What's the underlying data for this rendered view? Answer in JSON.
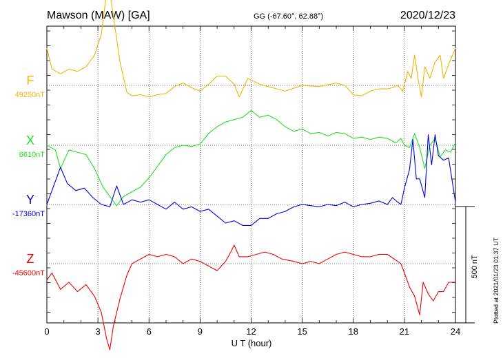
{
  "header": {
    "station": "Mawson (MAW)  [GA]",
    "coords": "GG (-67.60°,  62.88°)",
    "date": "2020/12/23"
  },
  "plotted": "Plotted at 2021/01/23 01:37 UT",
  "chart_data": {
    "type": "line",
    "xlabel": "U T (hour)",
    "xlim": [
      0,
      24
    ],
    "xticks": [
      0,
      3,
      6,
      9,
      12,
      15,
      18,
      21,
      24
    ],
    "xtick_labels": [
      "0",
      "3",
      "6",
      "9",
      "12",
      "15",
      "18",
      "21",
      "24"
    ],
    "grid": true,
    "scale_bar": {
      "label": "500 nT",
      "value_nT": 500
    },
    "series": [
      {
        "name": "F",
        "baseline_label": "49250nT",
        "baseline_nT": 49250,
        "color": "#f5b400",
        "points": [
          [
            0,
            49410
          ],
          [
            0.3,
            49320
          ],
          [
            0.8,
            49300
          ],
          [
            1.3,
            49320
          ],
          [
            1.8,
            49310
          ],
          [
            2.3,
            49330
          ],
          [
            2.8,
            49380
          ],
          [
            3.2,
            49470
          ],
          [
            3.6,
            49700
          ],
          [
            3.9,
            49550
          ],
          [
            4.3,
            49350
          ],
          [
            4.7,
            49220
          ],
          [
            5,
            49205
          ],
          [
            5.5,
            49210
          ],
          [
            6,
            49200
          ],
          [
            6.5,
            49210
          ],
          [
            7,
            49215
          ],
          [
            7.5,
            49245
          ],
          [
            8,
            49260
          ],
          [
            8.5,
            49240
          ],
          [
            9,
            49225
          ],
          [
            9.5,
            49255
          ],
          [
            10,
            49290
          ],
          [
            10.5,
            49290
          ],
          [
            11,
            49255
          ],
          [
            11.3,
            49200
          ],
          [
            11.8,
            49280
          ],
          [
            12.5,
            49255
          ],
          [
            13,
            49245
          ],
          [
            14,
            49225
          ],
          [
            15,
            49250
          ],
          [
            16,
            49245
          ],
          [
            17,
            49260
          ],
          [
            17.5,
            49250
          ],
          [
            18,
            49210
          ],
          [
            18.5,
            49205
          ],
          [
            19,
            49225
          ],
          [
            19.5,
            49235
          ],
          [
            20,
            49235
          ],
          [
            20.3,
            49240
          ],
          [
            20.6,
            49250
          ],
          [
            20.9,
            49225
          ],
          [
            21.2,
            49310
          ],
          [
            21.4,
            49280
          ],
          [
            21.6,
            49380
          ],
          [
            21.8,
            49280
          ],
          [
            22,
            49200
          ],
          [
            22.2,
            49330
          ],
          [
            22.5,
            49280
          ],
          [
            22.8,
            49350
          ],
          [
            23.1,
            49380
          ],
          [
            23.3,
            49280
          ],
          [
            23.6,
            49340
          ],
          [
            24,
            49410
          ]
        ]
      },
      {
        "name": "X",
        "baseline_label": "6610nT",
        "baseline_nT": 6610,
        "color": "#22e022",
        "points": [
          [
            0,
            6610
          ],
          [
            0.5,
            6590
          ],
          [
            0.8,
            6510
          ],
          [
            1.3,
            6590
          ],
          [
            1.8,
            6580
          ],
          [
            2.3,
            6570
          ],
          [
            2.8,
            6510
          ],
          [
            3.3,
            6430
          ],
          [
            3.8,
            6380
          ],
          [
            4.1,
            6350
          ],
          [
            4.5,
            6390
          ],
          [
            5,
            6410
          ],
          [
            5.5,
            6430
          ],
          [
            6,
            6470
          ],
          [
            6.5,
            6520
          ],
          [
            7,
            6570
          ],
          [
            7.5,
            6600
          ],
          [
            8,
            6610
          ],
          [
            8.5,
            6605
          ],
          [
            9,
            6615
          ],
          [
            9.5,
            6660
          ],
          [
            10,
            6690
          ],
          [
            10.5,
            6710
          ],
          [
            11,
            6720
          ],
          [
            11.5,
            6730
          ],
          [
            12,
            6760
          ],
          [
            12.5,
            6730
          ],
          [
            13,
            6740
          ],
          [
            13.5,
            6720
          ],
          [
            14,
            6690
          ],
          [
            14.5,
            6670
          ],
          [
            15,
            6680
          ],
          [
            15.5,
            6660
          ],
          [
            16,
            6665
          ],
          [
            16.5,
            6650
          ],
          [
            17,
            6665
          ],
          [
            17.5,
            6660
          ],
          [
            18,
            6640
          ],
          [
            18.5,
            6645
          ],
          [
            19,
            6635
          ],
          [
            19.5,
            6645
          ],
          [
            20,
            6640
          ],
          [
            20.5,
            6620
          ],
          [
            20.8,
            6640
          ],
          [
            21,
            6610
          ],
          [
            21.3,
            6600
          ],
          [
            21.6,
            6660
          ],
          [
            21.9,
            6600
          ],
          [
            22.2,
            6510
          ],
          [
            22.5,
            6610
          ],
          [
            22.8,
            6640
          ],
          [
            23.1,
            6560
          ],
          [
            23.4,
            6590
          ],
          [
            23.7,
            6580
          ],
          [
            24,
            6620
          ]
        ]
      },
      {
        "name": "Y",
        "baseline_label": "-17360nT",
        "baseline_nT": -17360,
        "color": "#0000dd",
        "points": [
          [
            0,
            -17360
          ],
          [
            0.5,
            -17260
          ],
          [
            0.8,
            -17200
          ],
          [
            1.2,
            -17270
          ],
          [
            1.7,
            -17300
          ],
          [
            2.2,
            -17290
          ],
          [
            2.7,
            -17330
          ],
          [
            3.2,
            -17360
          ],
          [
            3.7,
            -17370
          ],
          [
            4.1,
            -17280
          ],
          [
            4.5,
            -17360
          ],
          [
            5,
            -17340
          ],
          [
            5.5,
            -17350
          ],
          [
            6,
            -17340
          ],
          [
            6.5,
            -17360
          ],
          [
            7,
            -17380
          ],
          [
            7.5,
            -17350
          ],
          [
            8,
            -17380
          ],
          [
            8.5,
            -17370
          ],
          [
            9,
            -17390
          ],
          [
            9.5,
            -17380
          ],
          [
            10,
            -17410
          ],
          [
            10.5,
            -17440
          ],
          [
            11,
            -17430
          ],
          [
            11.5,
            -17450
          ],
          [
            12,
            -17450
          ],
          [
            12.5,
            -17420
          ],
          [
            13,
            -17420
          ],
          [
            13.5,
            -17400
          ],
          [
            14,
            -17390
          ],
          [
            14.5,
            -17370
          ],
          [
            15,
            -17360
          ],
          [
            15.5,
            -17365
          ],
          [
            16,
            -17370
          ],
          [
            16.5,
            -17360
          ],
          [
            17,
            -17365
          ],
          [
            17.5,
            -17350
          ],
          [
            18,
            -17370
          ],
          [
            18.5,
            -17360
          ],
          [
            19,
            -17355
          ],
          [
            19.5,
            -17345
          ],
          [
            20,
            -17360
          ],
          [
            20.3,
            -17330
          ],
          [
            20.6,
            -17350
          ],
          [
            20.8,
            -17360
          ],
          [
            21,
            -17290
          ],
          [
            21.3,
            -17210
          ],
          [
            21.5,
            -17080
          ],
          [
            21.7,
            -17250
          ],
          [
            21.9,
            -17250
          ],
          [
            22.2,
            -17330
          ],
          [
            22.4,
            -17060
          ],
          [
            22.6,
            -17190
          ],
          [
            22.8,
            -17060
          ],
          [
            23,
            -17150
          ],
          [
            23.3,
            -17170
          ],
          [
            23.6,
            -17160
          ],
          [
            24,
            -17350
          ]
        ]
      },
      {
        "name": "Z",
        "baseline_label": "-45600nT",
        "baseline_nT": -45600,
        "color": "#ee0000",
        "points": [
          [
            0,
            -45670
          ],
          [
            0.3,
            -45640
          ],
          [
            0.8,
            -45710
          ],
          [
            1.3,
            -45680
          ],
          [
            1.8,
            -45720
          ],
          [
            2.3,
            -45690
          ],
          [
            2.8,
            -45740
          ],
          [
            3.2,
            -45810
          ],
          [
            3.5,
            -45920
          ],
          [
            3.7,
            -45970
          ],
          [
            3.9,
            -45870
          ],
          [
            4.3,
            -45750
          ],
          [
            4.7,
            -45650
          ],
          [
            5,
            -45600
          ],
          [
            5.5,
            -45580
          ],
          [
            6,
            -45560
          ],
          [
            6.5,
            -45570
          ],
          [
            7,
            -45560
          ],
          [
            7.5,
            -45570
          ],
          [
            8,
            -45600
          ],
          [
            8.5,
            -45580
          ],
          [
            9,
            -45590
          ],
          [
            9.5,
            -45610
          ],
          [
            10,
            -45630
          ],
          [
            10.5,
            -45590
          ],
          [
            10.8,
            -45550
          ],
          [
            11,
            -45520
          ],
          [
            11.3,
            -45570
          ],
          [
            11.8,
            -45570
          ],
          [
            12.3,
            -45560
          ],
          [
            12.8,
            -45550
          ],
          [
            13.3,
            -45560
          ],
          [
            13.8,
            -45580
          ],
          [
            14.5,
            -45590
          ],
          [
            15,
            -45600
          ],
          [
            15.5,
            -45590
          ],
          [
            16,
            -45600
          ],
          [
            16.5,
            -45580
          ],
          [
            17,
            -45560
          ],
          [
            17.5,
            -45550
          ],
          [
            18,
            -45560
          ],
          [
            18.5,
            -45570
          ],
          [
            19,
            -45570
          ],
          [
            19.5,
            -45560
          ],
          [
            20,
            -45560
          ],
          [
            20.4,
            -45580
          ],
          [
            20.8,
            -45600
          ],
          [
            21,
            -45640
          ],
          [
            21.3,
            -45700
          ],
          [
            21.6,
            -45740
          ],
          [
            21.9,
            -45820
          ],
          [
            22.1,
            -45680
          ],
          [
            22.4,
            -45730
          ],
          [
            22.7,
            -45760
          ],
          [
            23,
            -45720
          ],
          [
            23.3,
            -45720
          ],
          [
            23.6,
            -45680
          ],
          [
            24,
            -45680
          ]
        ]
      }
    ]
  }
}
